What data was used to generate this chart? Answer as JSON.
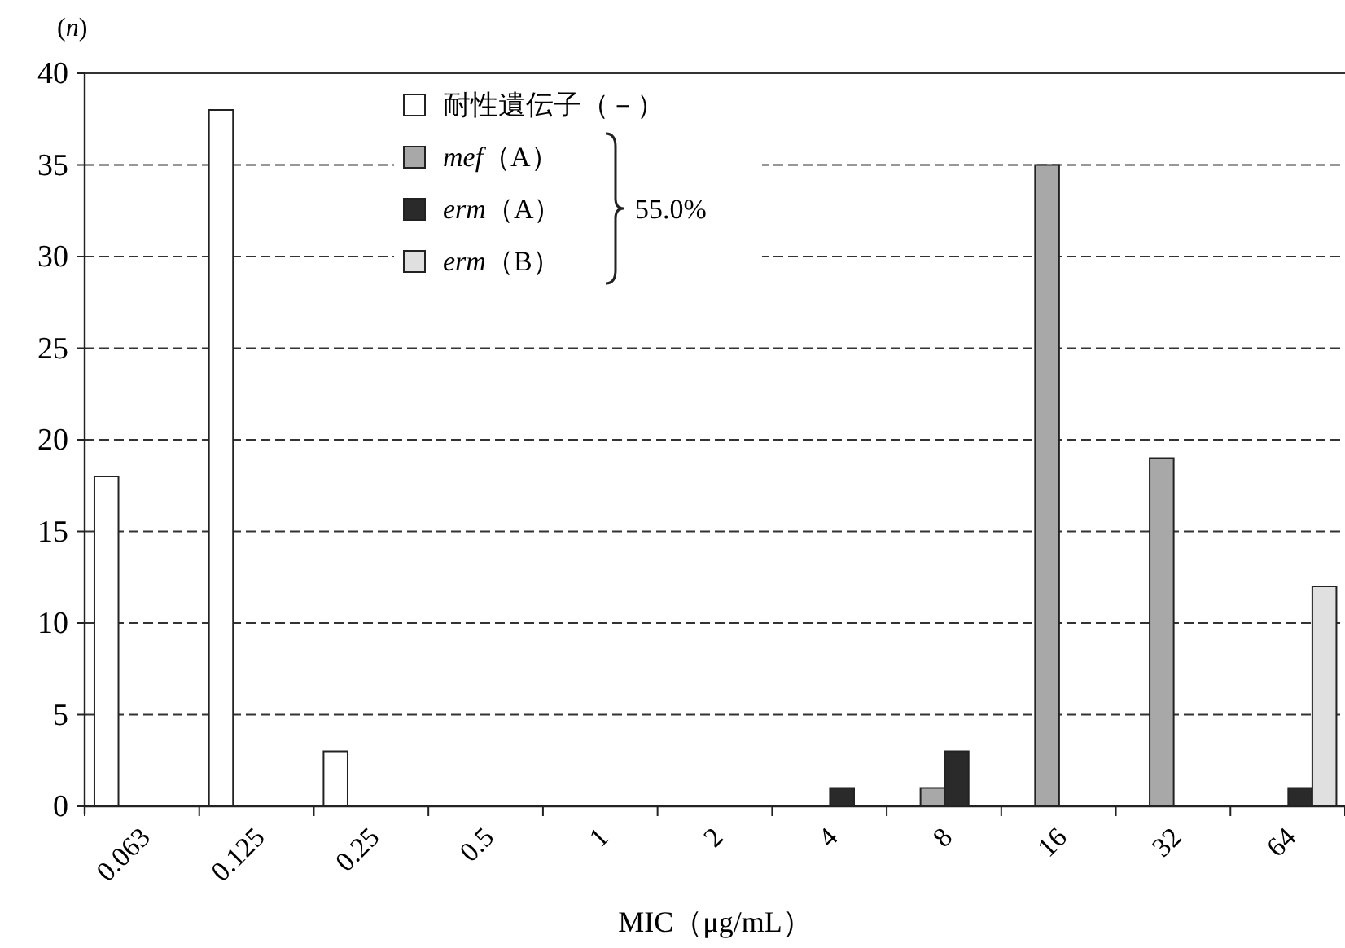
{
  "chart_data": {
    "type": "bar",
    "xlabel": "MIC（μg/mL）",
    "ylabel": "(*n*)",
    "categories": [
      "0.063",
      "0.125",
      "0.25",
      "0.5",
      "1",
      "2",
      "4",
      "8",
      "16",
      "32",
      "64"
    ],
    "series": [
      {
        "name": "耐性遺伝子（－）",
        "color": "#ffffff",
        "values": [
          18,
          38,
          3,
          null,
          null,
          null,
          null,
          null,
          null,
          null,
          null
        ]
      },
      {
        "name": "*mef*（A）",
        "color": "#a8a8a8",
        "values": [
          null,
          null,
          null,
          null,
          null,
          null,
          null,
          1,
          35,
          19,
          null
        ]
      },
      {
        "name": "*erm*（A）",
        "color": "#2a2a2a",
        "values": [
          null,
          null,
          null,
          null,
          null,
          null,
          1,
          3,
          null,
          null,
          1
        ]
      },
      {
        "name": "*erm*（B）",
        "color": "#e0e0e0",
        "values": [
          null,
          null,
          null,
          null,
          null,
          null,
          null,
          null,
          null,
          null,
          12
        ]
      }
    ],
    "ylim": [
      0,
      40
    ],
    "yticks": [
      0,
      5,
      10,
      15,
      20,
      25,
      30,
      35,
      40
    ],
    "grid": "y",
    "legend": "top left",
    "annotations": [
      "55.0%"
    ]
  }
}
